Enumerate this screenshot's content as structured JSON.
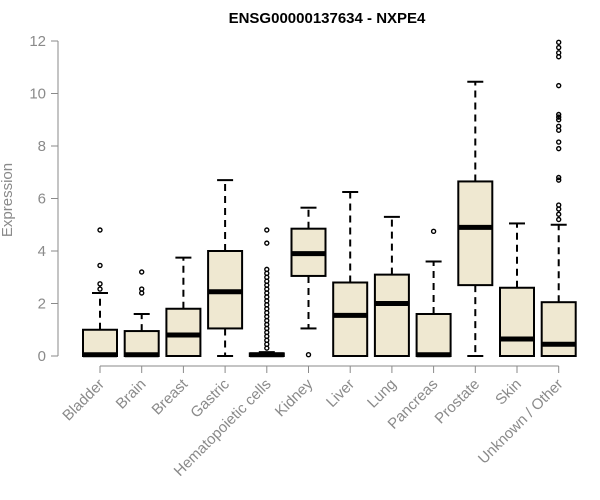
{
  "chart_data": {
    "type": "box",
    "title": "ENSG00000137634 - NXPE4",
    "xlabel": "",
    "ylabel": "Expression",
    "ylim": [
      0,
      12
    ],
    "yticks": [
      0,
      2,
      4,
      6,
      8,
      10,
      12
    ],
    "box_fill": "#efe8d1",
    "categories": [
      "Bladder",
      "Brain",
      "Breast",
      "Gastric",
      "Hematopoietic cells",
      "Kidney",
      "Liver",
      "Lung",
      "Pancreas",
      "Prostate",
      "Skin",
      "Unknown / Other"
    ],
    "boxes": [
      {
        "category": "Bladder",
        "whisker_low": 0,
        "q1": 0,
        "median": 0.05,
        "q3": 1.0,
        "whisker_high": 2.4,
        "outliers": [
          2.55,
          2.75,
          3.45,
          4.8
        ]
      },
      {
        "category": "Brain",
        "whisker_low": 0,
        "q1": 0,
        "median": 0.05,
        "q3": 0.95,
        "whisker_high": 1.6,
        "outliers": [
          2.4,
          2.55,
          3.2
        ]
      },
      {
        "category": "Breast",
        "whisker_low": 0,
        "q1": 0,
        "median": 0.8,
        "q3": 1.8,
        "whisker_high": 3.75,
        "outliers": []
      },
      {
        "category": "Gastric",
        "whisker_low": 0,
        "q1": 1.05,
        "median": 2.45,
        "q3": 4.0,
        "whisker_high": 6.7,
        "outliers": []
      },
      {
        "category": "Hematopoietic cells",
        "whisker_low": 0,
        "q1": 0,
        "median": 0.05,
        "q3": 0.1,
        "whisker_high": 0.15,
        "outliers": [
          0.3,
          0.45,
          0.6,
          0.75,
          0.9,
          1.05,
          1.2,
          1.35,
          1.5,
          1.65,
          1.8,
          1.95,
          2.1,
          2.25,
          2.4,
          2.55,
          2.7,
          2.85,
          3.0,
          3.15,
          3.3,
          4.3,
          4.8
        ]
      },
      {
        "category": "Kidney",
        "whisker_low": 1.05,
        "q1": 3.05,
        "median": 3.9,
        "q3": 4.85,
        "whisker_high": 5.65,
        "outliers": [
          0.05
        ]
      },
      {
        "category": "Liver",
        "whisker_low": 0,
        "q1": 0,
        "median": 1.55,
        "q3": 2.8,
        "whisker_high": 6.25,
        "outliers": []
      },
      {
        "category": "Lung",
        "whisker_low": 0,
        "q1": 0,
        "median": 2.0,
        "q3": 3.1,
        "whisker_high": 5.3,
        "outliers": []
      },
      {
        "category": "Pancreas",
        "whisker_low": 0,
        "q1": 0,
        "median": 0.05,
        "q3": 1.6,
        "whisker_high": 3.6,
        "outliers": [
          4.75
        ]
      },
      {
        "category": "Prostate",
        "whisker_low": 0,
        "q1": 2.7,
        "median": 4.9,
        "q3": 6.65,
        "whisker_high": 10.45,
        "outliers": []
      },
      {
        "category": "Skin",
        "whisker_low": 0,
        "q1": 0,
        "median": 0.65,
        "q3": 2.6,
        "whisker_high": 5.05,
        "outliers": []
      },
      {
        "category": "Unknown / Other",
        "whisker_low": 0,
        "q1": 0,
        "median": 0.45,
        "q3": 2.05,
        "whisker_high": 5.0,
        "outliers": [
          5.2,
          5.4,
          5.6,
          5.75,
          6.7,
          6.8,
          7.9,
          8.15,
          8.6,
          8.75,
          9.0,
          9.1,
          9.2,
          10.3,
          11.4,
          11.55,
          11.75,
          11.95
        ]
      }
    ]
  }
}
